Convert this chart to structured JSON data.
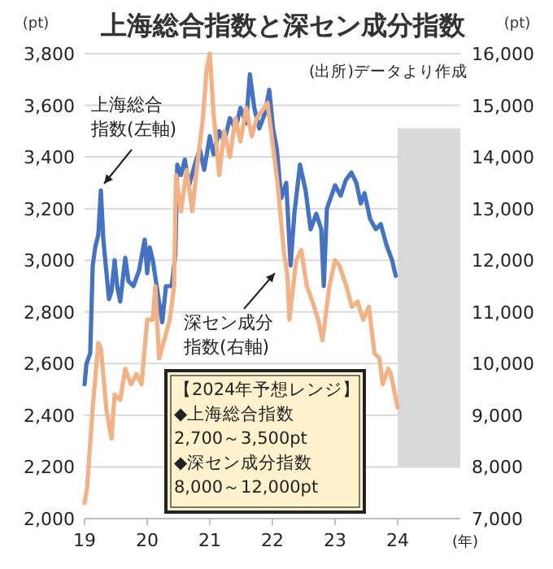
{
  "chart_data": {
    "type": "line",
    "title": "上海総合指数と深セン成分指数",
    "ylabel": "(pt)",
    "y2label": "(pt)",
    "xlabel": "(年)",
    "xlim": [
      2019,
      2025
    ],
    "xticks": [
      {
        "value": 2019,
        "label": "19"
      },
      {
        "value": 2020,
        "label": "20"
      },
      {
        "value": 2021,
        "label": "21"
      },
      {
        "value": 2022,
        "label": "22"
      },
      {
        "value": 2023,
        "label": "23"
      },
      {
        "value": 2024,
        "label": "24"
      }
    ],
    "ylim": [
      2000,
      3800
    ],
    "yticks": [
      {
        "value": 2000,
        "label": "2,000"
      },
      {
        "value": 2200,
        "label": "2,200"
      },
      {
        "value": 2400,
        "label": "2,400"
      },
      {
        "value": 2600,
        "label": "2,600"
      },
      {
        "value": 2800,
        "label": "2,800"
      },
      {
        "value": 3000,
        "label": "3,000"
      },
      {
        "value": 3200,
        "label": "3,200"
      },
      {
        "value": 3400,
        "label": "3,400"
      },
      {
        "value": 3600,
        "label": "3,600"
      },
      {
        "value": 3800,
        "label": "3,800"
      }
    ],
    "y2lim": [
      7000,
      16000
    ],
    "y2ticks": [
      {
        "value": 7000,
        "label": "7,000"
      },
      {
        "value": 8000,
        "label": "8,000"
      },
      {
        "value": 9000,
        "label": "9,000"
      },
      {
        "value": 10000,
        "label": "10,000"
      },
      {
        "value": 11000,
        "label": "11,000"
      },
      {
        "value": 12000,
        "label": "12,000"
      },
      {
        "value": 13000,
        "label": "13,000"
      },
      {
        "value": 14000,
        "label": "14,000"
      },
      {
        "value": 15000,
        "label": "15,000"
      },
      {
        "value": 16000,
        "label": "16,000"
      }
    ],
    "grid": "y",
    "line_style": "solid",
    "bands": [
      {
        "axis": "x",
        "from": 2024,
        "to": 2025,
        "color": "#d9d9d9"
      }
    ],
    "annotations": [
      "(出所)データより作成",
      "【2024年予想レンジ】\n◆上海総合指数\n2,700～3,500pt\n◆深セン成分指数\n8,000～12,000pt"
    ],
    "series": [
      {
        "name": "上海総合指数(左軸)",
        "color": "#4472c4",
        "axis": "y",
        "x": [
          2019.0,
          2019.03,
          2019.09,
          2019.13,
          2019.17,
          2019.22,
          2019.26,
          2019.3,
          2019.35,
          2019.39,
          2019.43,
          2019.48,
          2019.52,
          2019.57,
          2019.65,
          2019.7,
          2019.78,
          2019.87,
          2019.96,
          2020.0,
          2020.04,
          2020.09,
          2020.17,
          2020.24,
          2020.3,
          2020.39,
          2020.45,
          2020.48,
          2020.54,
          2020.6,
          2020.67,
          2020.76,
          2020.84,
          2020.91,
          2021.0,
          2021.06,
          2021.15,
          2021.23,
          2021.32,
          2021.41,
          2021.49,
          2021.58,
          2021.64,
          2021.71,
          2021.79,
          2021.88,
          2021.95,
          2022.01,
          2022.07,
          2022.14,
          2022.22,
          2022.29,
          2022.35,
          2022.44,
          2022.53,
          2022.61,
          2022.7,
          2022.78,
          2022.82,
          2022.87,
          2023.0,
          2023.09,
          2023.17,
          2023.26,
          2023.34,
          2023.41,
          2023.47,
          2023.56,
          2023.65,
          2023.73,
          2023.82,
          2023.91,
          2023.97
        ],
        "values": [
          2520,
          2600,
          2640,
          2980,
          3050,
          3100,
          3270,
          3080,
          2950,
          2850,
          2880,
          3000,
          2900,
          2840,
          3010,
          2920,
          2900,
          2960,
          3080,
          2950,
          3050,
          3000,
          2870,
          2760,
          2900,
          2900,
          3020,
          3370,
          3330,
          3390,
          3290,
          3370,
          3430,
          3350,
          3480,
          3410,
          3500,
          3460,
          3550,
          3510,
          3590,
          3530,
          3720,
          3590,
          3510,
          3570,
          3660,
          3510,
          3430,
          3240,
          3300,
          2980,
          3180,
          3370,
          3270,
          3120,
          3180,
          3120,
          2900,
          3200,
          3290,
          3250,
          3310,
          3340,
          3300,
          3220,
          3260,
          3160,
          3120,
          3140,
          3060,
          3000,
          2940
        ]
      },
      {
        "name": "深セン成分指数(右軸)",
        "color": "#f4b183",
        "axis": "y2",
        "x": [
          2019.0,
          2019.04,
          2019.13,
          2019.22,
          2019.26,
          2019.35,
          2019.43,
          2019.48,
          2019.57,
          2019.65,
          2019.74,
          2019.83,
          2019.91,
          2020.0,
          2020.09,
          2020.13,
          2020.19,
          2020.26,
          2020.36,
          2020.43,
          2020.46,
          2020.54,
          2020.63,
          2020.72,
          2020.8,
          2020.89,
          2020.95,
          2021.0,
          2021.06,
          2021.15,
          2021.23,
          2021.32,
          2021.41,
          2021.49,
          2021.58,
          2021.67,
          2021.75,
          2021.84,
          2021.92,
          2022.01,
          2022.09,
          2022.18,
          2022.24,
          2022.27,
          2022.38,
          2022.46,
          2022.55,
          2022.64,
          2022.73,
          2022.8,
          2022.91,
          2023.0,
          2023.07,
          2023.18,
          2023.27,
          2023.36,
          2023.45,
          2023.54,
          2023.63,
          2023.71,
          2023.76,
          2023.85,
          2023.89,
          2024.0
        ],
        "values": [
          7300,
          7600,
          9150,
          10400,
          10300,
          9100,
          8550,
          9400,
          9300,
          9900,
          9600,
          9800,
          9600,
          10850,
          10850,
          11500,
          10100,
          10400,
          10850,
          11500,
          13650,
          12950,
          13750,
          12950,
          13850,
          14750,
          15700,
          16000,
          14850,
          13650,
          14500,
          14000,
          14750,
          14300,
          14950,
          14400,
          14750,
          14900,
          15050,
          14200,
          13400,
          12200,
          11700,
          10850,
          12000,
          12200,
          11500,
          11200,
          10850,
          10450,
          11500,
          12000,
          11900,
          11500,
          11100,
          11200,
          10850,
          11100,
          10200,
          10100,
          9600,
          9900,
          9800,
          9150
        ]
      }
    ]
  }
}
